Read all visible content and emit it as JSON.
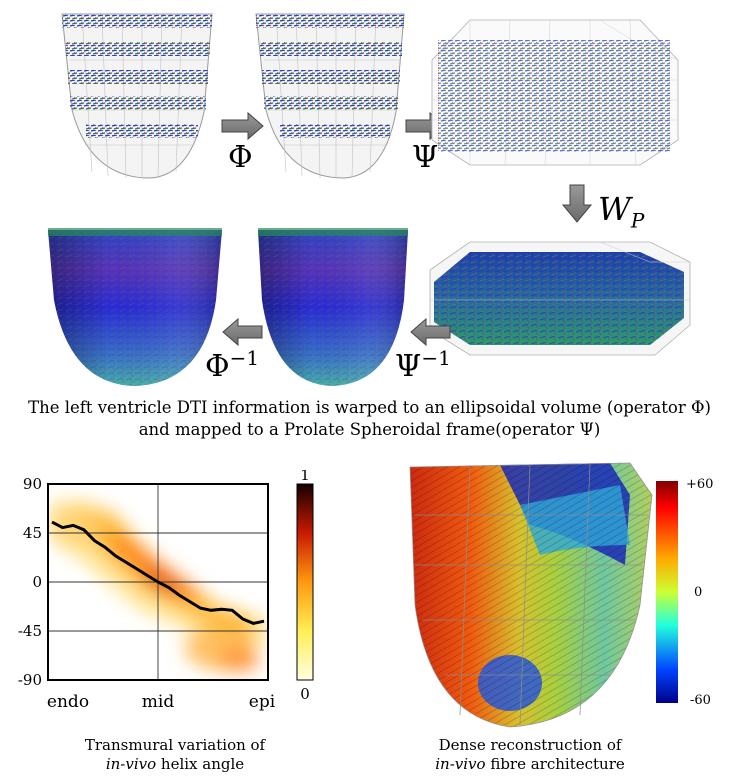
{
  "pipeline": {
    "operators": {
      "phi": "Φ",
      "psi": "Ψ",
      "wp_main": "W",
      "wp_sub": "P",
      "phi_inv": "Φ",
      "phi_inv_sup": "−1",
      "psi_inv": "Ψ",
      "psi_inv_sup": "−1"
    },
    "caption_line1": "The left ventricle DTI information is warped to an ellipsoidal volume (operator Φ)",
    "caption_line2": "and mapped to a Prolate Spheroidal frame(operator Ψ)"
  },
  "helix_panel": {
    "caption_line1": "Transmural variation of",
    "caption_line2_italic": "in-vivo",
    "caption_line2_rest": " helix angle",
    "colorbar_max": "1",
    "colorbar_min": "0"
  },
  "fibre_panel": {
    "caption_line1": "Dense reconstruction of",
    "caption_line2_italic": "in-vivo",
    "caption_line2_rest": " fibre architecture",
    "colorbar_top": "+60",
    "colorbar_mid": "0",
    "colorbar_bottom": "-60"
  },
  "chart_data": {
    "type": "heatmap",
    "title": "",
    "xlabel": "",
    "ylabel": "",
    "x_tick_labels": [
      "endo",
      "mid",
      "epi"
    ],
    "y_tick_labels": [
      "90",
      "45",
      "0",
      "-45",
      "-90"
    ],
    "ylim": [
      -90,
      90
    ],
    "grid": true,
    "colorbar_range": [
      0,
      1
    ],
    "series": [
      {
        "type": "line",
        "x": [
          0.0,
          0.05,
          0.1,
          0.15,
          0.2,
          0.25,
          0.3,
          0.35,
          0.4,
          0.45,
          0.5,
          0.55,
          0.6,
          0.65,
          0.7,
          0.75,
          0.8,
          0.85,
          0.9,
          0.95,
          1.0
        ],
        "y": [
          55,
          50,
          52,
          48,
          38,
          32,
          24,
          18,
          12,
          6,
          0,
          -5,
          -12,
          -18,
          -24,
          -26,
          -25,
          -26,
          -34,
          -38,
          -36
        ]
      }
    ]
  }
}
